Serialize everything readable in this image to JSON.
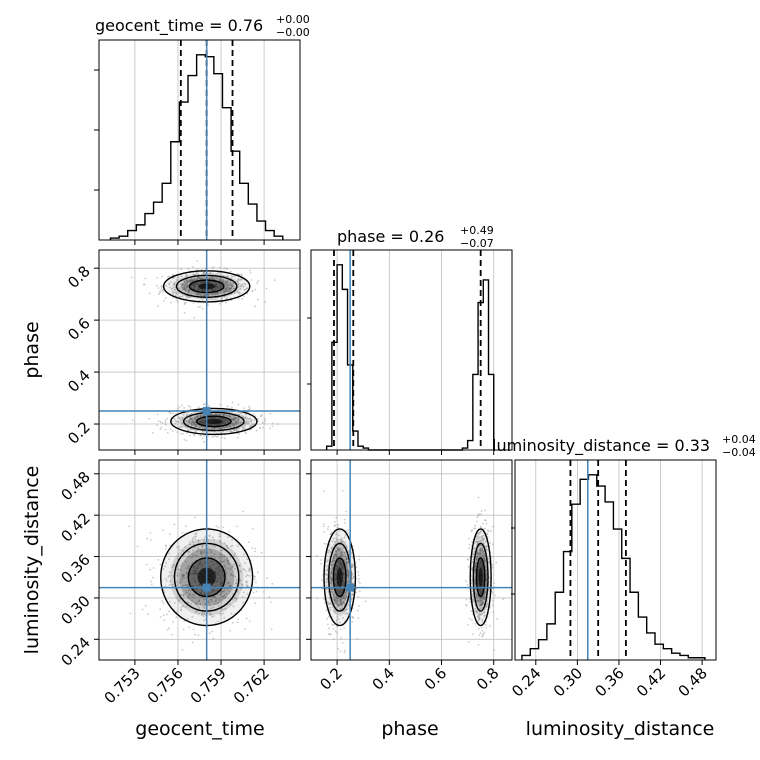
{
  "chart_data": {
    "type": "corner",
    "parameters": [
      "geocent_time",
      "phase",
      "luminosity_distance"
    ],
    "truths": {
      "geocent_time": 0.758,
      "phase": 0.25,
      "luminosity_distance": 0.315
    },
    "titles": [
      {
        "param": "geocent_time",
        "text": "geocent_time = 0.76",
        "plus": "+0.00",
        "minus": "−0.00"
      },
      {
        "param": "phase",
        "text": "phase = 0.26",
        "plus": "+0.49",
        "minus": "−0.07"
      },
      {
        "param": "luminosity_distance",
        "text": "luminosity_distance = 0.33",
        "plus": "+0.04",
        "minus": "−0.04"
      }
    ],
    "axes": {
      "geocent_time": {
        "range": [
          0.7505,
          0.7645
        ],
        "ticks": [
          0.753,
          0.756,
          0.759,
          0.762
        ],
        "tick_labels": [
          "0.753",
          "0.756",
          "0.759",
          "0.762"
        ],
        "label": "geocent_time"
      },
      "phase": {
        "range": [
          0.1,
          0.87
        ],
        "ticks": [
          0.2,
          0.4,
          0.6,
          0.8
        ],
        "tick_labels": [
          "0.2",
          "0.4",
          "0.6",
          "0.8"
        ],
        "label": "phase"
      },
      "luminosity_distance": {
        "range": [
          0.21,
          0.5
        ],
        "ticks": [
          0.24,
          0.3,
          0.36,
          0.42,
          0.48
        ],
        "tick_labels": [
          "0.24",
          "0.30",
          "0.36",
          "0.42",
          "0.48"
        ],
        "label": "luminosity_distance"
      }
    },
    "histograms": {
      "geocent_time": {
        "bin_edges": [
          0.7513,
          0.7519,
          0.7525,
          0.7531,
          0.7537,
          0.7543,
          0.7549,
          0.7555,
          0.7561,
          0.7567,
          0.7573,
          0.7579,
          0.7585,
          0.7591,
          0.7597,
          0.7603,
          0.7609,
          0.7615,
          0.7621,
          0.7627,
          0.7633
        ],
        "counts": [
          1,
          2,
          5,
          8,
          14,
          20,
          30,
          52,
          73,
          87,
          98,
          97,
          88,
          70,
          47,
          30,
          19,
          10,
          5,
          2
        ],
        "quantile_lines": [
          0.7562,
          0.758,
          0.7598
        ]
      },
      "phase": {
        "bin_edges": [
          0.16,
          0.18,
          0.2,
          0.22,
          0.24,
          0.26,
          0.28,
          0.3,
          0.32,
          0.34,
          0.36,
          0.38,
          0.4,
          0.42,
          0.44,
          0.46,
          0.48,
          0.5,
          0.52,
          0.54,
          0.56,
          0.58,
          0.6,
          0.62,
          0.64,
          0.66,
          0.68,
          0.7,
          0.72,
          0.74,
          0.76,
          0.78,
          0.8
        ],
        "counts": [
          2,
          57,
          98,
          85,
          45,
          10,
          2,
          1,
          0,
          0,
          0,
          0,
          0,
          0,
          0,
          0,
          0,
          0,
          0,
          0,
          0,
          0,
          0,
          0,
          0,
          0,
          1,
          5,
          40,
          78,
          90,
          40
        ],
        "quantile_lines": [
          0.188,
          0.262,
          0.75
        ]
      },
      "luminosity_distance": {
        "bin_edges": [
          0.22,
          0.232,
          0.244,
          0.256,
          0.268,
          0.28,
          0.292,
          0.304,
          0.316,
          0.328,
          0.34,
          0.352,
          0.364,
          0.376,
          0.388,
          0.4,
          0.412,
          0.424,
          0.436,
          0.448,
          0.46,
          0.472,
          0.484
        ],
        "counts": [
          2,
          5,
          9,
          16,
          30,
          48,
          69,
          80,
          82,
          77,
          70,
          58,
          45,
          30,
          19,
          12,
          7,
          5,
          3,
          2,
          1,
          1
        ],
        "quantile_lines": [
          0.29,
          0.33,
          0.37
        ]
      }
    },
    "scatter_2d": {
      "phase_vs_geocent_time": {
        "modes": [
          {
            "center": [
              0.758,
              0.73
            ],
            "sigma": [
              0.0015,
              0.03
            ]
          },
          {
            "center": [
              0.7585,
              0.21
            ],
            "sigma": [
              0.0015,
              0.025
            ]
          }
        ]
      },
      "luminosity_distance_vs_geocent_time": {
        "modes": [
          {
            "center": [
              0.758,
              0.33
            ],
            "sigma": [
              0.0016,
              0.035
            ]
          }
        ]
      },
      "luminosity_distance_vs_phase": {
        "modes": [
          {
            "center": [
              0.21,
              0.33
            ],
            "sigma": [
              0.03,
              0.035
            ]
          },
          {
            "center": [
              0.75,
              0.33
            ],
            "sigma": [
              0.02,
              0.035
            ]
          }
        ]
      }
    },
    "colors": {
      "truth": "#4682b4",
      "hist": "#000000",
      "grid": "#c0c0c0",
      "points": "#9a9a9a"
    }
  }
}
